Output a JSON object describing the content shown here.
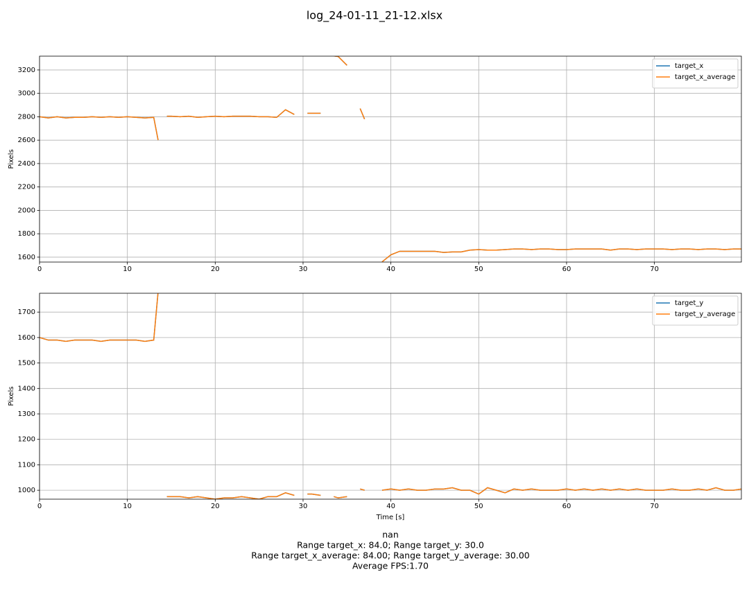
{
  "title": "log_24-01-11_21-12.xlsx",
  "footer": [
    "nan",
    "Range target_x: 84.0; Range target_y: 30.0",
    "Range target_x_average: 84.00; Range target_y_average: 30.00",
    "Average FPS:1.70"
  ],
  "chart_data": [
    {
      "type": "line",
      "ylabel": "Pixels",
      "grid": true,
      "legend": "upper right",
      "x": [
        0,
        1,
        2,
        3,
        4,
        5,
        6,
        7,
        8,
        9,
        10,
        11,
        12,
        13,
        13.5,
        14,
        14.5,
        15,
        16,
        17,
        18,
        19,
        20,
        21,
        22,
        23,
        24,
        25,
        26,
        27,
        28,
        29,
        30,
        30.5,
        31,
        32,
        33,
        33.5,
        34,
        35,
        36,
        36.5,
        37,
        38,
        39,
        40,
        41,
        42,
        43,
        44,
        45,
        46,
        47,
        48,
        49,
        50,
        51,
        52,
        53,
        54,
        55,
        56,
        57,
        58,
        59,
        60,
        61,
        62,
        63,
        64,
        65,
        66,
        67,
        68,
        69,
        70,
        71,
        72,
        73,
        74,
        75,
        76,
        77,
        78,
        79,
        79.9
      ],
      "xlim": [
        0,
        79.9
      ],
      "xticks": [
        0,
        10,
        20,
        30,
        40,
        50,
        60,
        70
      ],
      "ylim": [
        1558,
        3318
      ],
      "yticks": [
        1600,
        1800,
        2000,
        2200,
        2400,
        2600,
        2800,
        3000,
        3200
      ],
      "series": [
        {
          "name": "target_x",
          "color": "#1f77b4",
          "values": [
            2800,
            2790,
            2800,
            2790,
            2795,
            2795,
            2800,
            2795,
            2800,
            2795,
            2800,
            2795,
            2790,
            2795,
            2600,
            null,
            2805,
            2805,
            2800,
            2805,
            2795,
            2800,
            2805,
            2800,
            2805,
            2805,
            2805,
            2800,
            2800,
            2795,
            2860,
            2820,
            null,
            2830,
            2830,
            2830,
            null,
            3320,
            3315,
            3240,
            null,
            2870,
            2780,
            null,
            1560,
            1620,
            1650,
            1650,
            1650,
            1650,
            1650,
            1640,
            1645,
            1645,
            1660,
            1665,
            1660,
            1660,
            1665,
            1670,
            1670,
            1665,
            1670,
            1670,
            1665,
            1665,
            1670,
            1670,
            1670,
            1670,
            1660,
            1670,
            1670,
            1665,
            1670,
            1670,
            1670,
            1665,
            1670,
            1670,
            1665,
            1670,
            1670,
            1665,
            1670,
            1670
          ]
        },
        {
          "name": "target_x_average",
          "color": "#ff7f0e",
          "values": [
            2800,
            2790,
            2800,
            2790,
            2795,
            2795,
            2800,
            2795,
            2800,
            2795,
            2800,
            2795,
            2790,
            2795,
            2600,
            null,
            2805,
            2805,
            2800,
            2805,
            2795,
            2800,
            2805,
            2800,
            2805,
            2805,
            2805,
            2800,
            2800,
            2795,
            2860,
            2820,
            null,
            2830,
            2830,
            2830,
            null,
            3320,
            3315,
            3240,
            null,
            2870,
            2780,
            null,
            1560,
            1620,
            1650,
            1650,
            1650,
            1650,
            1650,
            1640,
            1645,
            1645,
            1660,
            1665,
            1660,
            1660,
            1665,
            1670,
            1670,
            1665,
            1670,
            1670,
            1665,
            1665,
            1670,
            1670,
            1670,
            1670,
            1660,
            1670,
            1670,
            1665,
            1670,
            1670,
            1670,
            1665,
            1670,
            1670,
            1665,
            1670,
            1670,
            1665,
            1670,
            1670
          ]
        }
      ]
    },
    {
      "type": "line",
      "xlabel": "Time [s]",
      "ylabel": "Pixels",
      "grid": true,
      "legend": "upper right",
      "x": [
        0,
        1,
        2,
        3,
        4,
        5,
        6,
        7,
        8,
        9,
        10,
        11,
        12,
        13,
        13.5,
        14,
        14.5,
        15,
        16,
        17,
        18,
        19,
        20,
        21,
        22,
        23,
        24,
        25,
        26,
        27,
        28,
        29,
        30,
        30.5,
        31,
        32,
        33,
        33.5,
        34,
        35,
        36,
        36.5,
        37,
        38,
        39,
        40,
        41,
        42,
        43,
        44,
        45,
        46,
        47,
        48,
        49,
        50,
        51,
        52,
        53,
        54,
        55,
        56,
        57,
        58,
        59,
        60,
        61,
        62,
        63,
        64,
        65,
        66,
        67,
        68,
        69,
        70,
        71,
        72,
        73,
        74,
        75,
        76,
        77,
        78,
        79,
        79.9
      ],
      "xlim": [
        0,
        79.9
      ],
      "xticks": [
        0,
        10,
        20,
        30,
        40,
        50,
        60,
        70
      ],
      "ylim": [
        965,
        1774
      ],
      "yticks": [
        1000,
        1100,
        1200,
        1300,
        1400,
        1500,
        1600,
        1700
      ],
      "series": [
        {
          "name": "target_y",
          "color": "#1f77b4",
          "values": [
            1600,
            1590,
            1590,
            1585,
            1590,
            1590,
            1590,
            1585,
            1590,
            1590,
            1590,
            1590,
            1585,
            1590,
            1780,
            null,
            975,
            975,
            975,
            970,
            975,
            970,
            965,
            970,
            970,
            975,
            970,
            965,
            975,
            975,
            990,
            980,
            null,
            985,
            985,
            980,
            null,
            975,
            970,
            975,
            null,
            1005,
            1000,
            null,
            1000,
            1005,
            1000,
            1005,
            1000,
            1000,
            1005,
            1005,
            1010,
            1000,
            1000,
            985,
            1010,
            1000,
            990,
            1005,
            1000,
            1005,
            1000,
            1000,
            1000,
            1005,
            1000,
            1005,
            1000,
            1005,
            1000,
            1005,
            1000,
            1005,
            1000,
            1000,
            1000,
            1005,
            1000,
            1000,
            1005,
            1000,
            1010,
            1000,
            1000,
            1005
          ]
        },
        {
          "name": "target_y_average",
          "color": "#ff7f0e",
          "values": [
            1600,
            1590,
            1590,
            1585,
            1590,
            1590,
            1590,
            1585,
            1590,
            1590,
            1590,
            1590,
            1585,
            1590,
            1780,
            null,
            975,
            975,
            975,
            970,
            975,
            970,
            965,
            970,
            970,
            975,
            970,
            965,
            975,
            975,
            990,
            980,
            null,
            985,
            985,
            980,
            null,
            975,
            970,
            975,
            null,
            1005,
            1000,
            null,
            1000,
            1005,
            1000,
            1005,
            1000,
            1000,
            1005,
            1005,
            1010,
            1000,
            1000,
            985,
            1010,
            1000,
            990,
            1005,
            1000,
            1005,
            1000,
            1000,
            1000,
            1005,
            1000,
            1005,
            1000,
            1005,
            1000,
            1005,
            1000,
            1005,
            1000,
            1000,
            1000,
            1005,
            1000,
            1000,
            1005,
            1000,
            1010,
            1000,
            1000,
            1005
          ]
        }
      ]
    }
  ]
}
